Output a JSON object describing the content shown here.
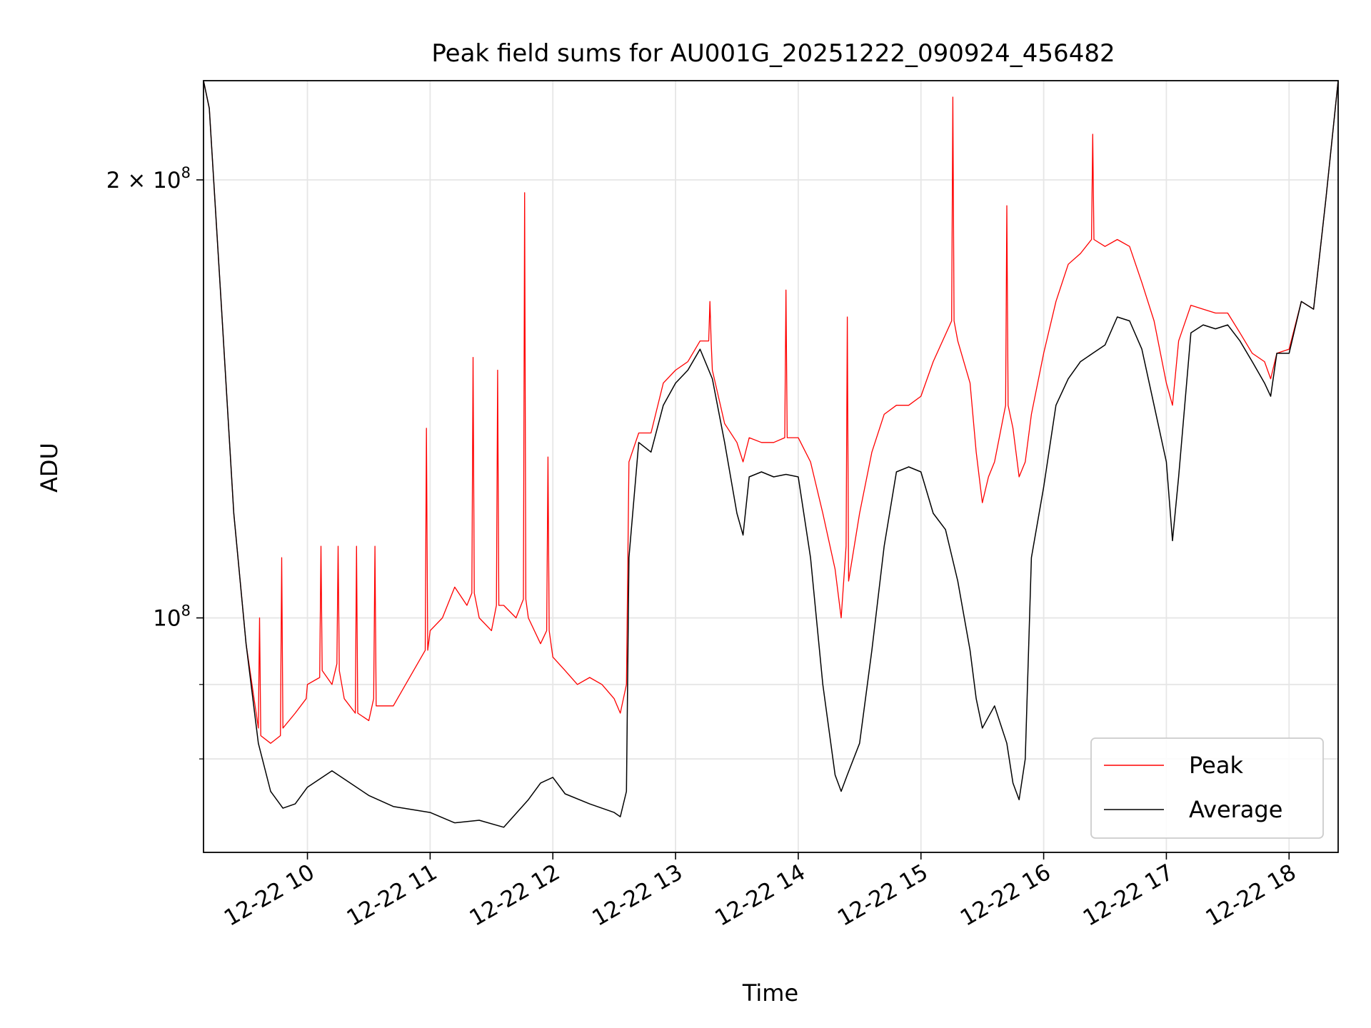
{
  "chart_data": {
    "type": "line",
    "title": "Peak field sums for AU001G_20251222_090924_456482",
    "xlabel": "Time",
    "ylabel": "ADU",
    "yscale": "log",
    "grid": true,
    "legend_position": "lower-right",
    "xlim_hours": [
      9.153,
      18.4
    ],
    "ylim": [
      69000000,
      234000000
    ],
    "x_ticks": [
      {
        "hour": 10,
        "label": "12-22 10"
      },
      {
        "hour": 11,
        "label": "12-22 11"
      },
      {
        "hour": 12,
        "label": "12-22 12"
      },
      {
        "hour": 13,
        "label": "12-22 13"
      },
      {
        "hour": 14,
        "label": "12-22 14"
      },
      {
        "hour": 15,
        "label": "12-22 15"
      },
      {
        "hour": 16,
        "label": "12-22 16"
      },
      {
        "hour": 17,
        "label": "12-22 17"
      },
      {
        "hour": 18,
        "label": "12-22 18"
      }
    ],
    "y_major_ticks": [
      {
        "value": 100000000,
        "label_base": "10",
        "label_exp": "8"
      },
      {
        "value": 200000000,
        "label_base": "2 × 10",
        "label_exp": "8"
      }
    ],
    "y_minor_ticks": [
      80000000,
      90000000
    ],
    "series": [
      {
        "name": "Average",
        "color": "#000000",
        "x": [
          9.153,
          9.2,
          9.3,
          9.4,
          9.5,
          9.6,
          9.7,
          9.8,
          9.9,
          10.0,
          10.1,
          10.2,
          10.3,
          10.5,
          10.7,
          11.0,
          11.2,
          11.4,
          11.6,
          11.8,
          11.9,
          12.0,
          12.1,
          12.3,
          12.5,
          12.55,
          12.6,
          12.62,
          12.7,
          12.8,
          12.9,
          13.0,
          13.1,
          13.2,
          13.3,
          13.4,
          13.5,
          13.55,
          13.6,
          13.7,
          13.8,
          13.9,
          14.0,
          14.1,
          14.2,
          14.3,
          14.35,
          14.4,
          14.5,
          14.6,
          14.7,
          14.8,
          14.9,
          15.0,
          15.1,
          15.2,
          15.3,
          15.4,
          15.45,
          15.5,
          15.55,
          15.6,
          15.7,
          15.75,
          15.8,
          15.85,
          15.9,
          16.0,
          16.1,
          16.2,
          16.3,
          16.4,
          16.5,
          16.6,
          16.7,
          16.8,
          16.9,
          17.0,
          17.05,
          17.1,
          17.2,
          17.3,
          17.4,
          17.5,
          17.6,
          17.7,
          17.8,
          17.85,
          17.9,
          18.0,
          18.1,
          18.2,
          18.3,
          18.4
        ],
        "values": [
          234000000,
          224000000,
          163000000,
          118000000,
          96000000,
          82000000,
          76000000,
          74000000,
          74500000,
          76500000,
          77500000,
          78500000,
          77500000,
          75500000,
          74200000,
          73500000,
          72300000,
          72600000,
          71800000,
          75000000,
          77000000,
          77700000,
          75700000,
          74500000,
          73500000,
          73000000,
          76000000,
          110000000,
          132000000,
          130000000,
          140000000,
          145000000,
          148000000,
          153000000,
          146000000,
          132000000,
          118000000,
          114000000,
          125000000,
          126000000,
          125000000,
          125500000,
          125000000,
          110000000,
          90000000,
          78000000,
          76000000,
          78000000,
          82000000,
          95000000,
          112000000,
          126000000,
          127000000,
          126000000,
          118000000,
          115000000,
          106000000,
          95000000,
          88000000,
          84000000,
          85500000,
          87000000,
          82000000,
          77000000,
          75000000,
          80000000,
          110000000,
          123000000,
          140000000,
          146000000,
          150000000,
          152000000,
          154000000,
          161000000,
          160000000,
          153000000,
          140000000,
          128000000,
          113000000,
          125000000,
          157000000,
          159000000,
          158000000,
          159000000,
          155000000,
          150000000,
          145000000,
          142000000,
          152000000,
          152000000,
          165000000,
          163000000,
          194000000,
          234000000
        ]
      },
      {
        "name": "Peak",
        "color": "#ff0000",
        "x": [
          9.153,
          9.2,
          9.3,
          9.4,
          9.5,
          9.6,
          9.61,
          9.62,
          9.7,
          9.78,
          9.79,
          9.8,
          9.9,
          9.99,
          10.0,
          10.1,
          10.11,
          10.12,
          10.2,
          10.24,
          10.25,
          10.26,
          10.3,
          10.39,
          10.4,
          10.41,
          10.5,
          10.54,
          10.55,
          10.56,
          10.7,
          10.8,
          10.96,
          10.97,
          10.98,
          11.0,
          11.1,
          11.2,
          11.3,
          11.34,
          11.35,
          11.36,
          11.4,
          11.5,
          11.54,
          11.55,
          11.56,
          11.6,
          11.7,
          11.76,
          11.77,
          11.78,
          11.8,
          11.9,
          11.95,
          11.96,
          11.97,
          12.0,
          12.1,
          12.2,
          12.3,
          12.4,
          12.5,
          12.55,
          12.6,
          12.62,
          12.7,
          12.8,
          12.9,
          13.0,
          13.1,
          13.2,
          13.27,
          13.28,
          13.29,
          13.3,
          13.4,
          13.5,
          13.55,
          13.6,
          13.7,
          13.8,
          13.89,
          13.9,
          13.91,
          14.0,
          14.1,
          14.2,
          14.3,
          14.35,
          14.39,
          14.4,
          14.41,
          14.5,
          14.6,
          14.7,
          14.8,
          14.9,
          15.0,
          15.1,
          15.25,
          15.26,
          15.27,
          15.3,
          15.4,
          15.45,
          15.5,
          15.55,
          15.6,
          15.69,
          15.7,
          15.71,
          15.75,
          15.8,
          15.85,
          15.9,
          16.0,
          16.1,
          16.2,
          16.3,
          16.39,
          16.4,
          16.41,
          16.5,
          16.6,
          16.7,
          16.8,
          16.9,
          17.0,
          17.05,
          17.1,
          17.2,
          17.3,
          17.4,
          17.5,
          17.6,
          17.7,
          17.8,
          17.85,
          17.9,
          18.0,
          18.1,
          18.2,
          18.3,
          18.4
        ],
        "values": [
          234000000,
          224000000,
          163000000,
          118000000,
          96000000,
          84000000,
          100000000,
          83000000,
          82000000,
          83000000,
          110000000,
          84000000,
          86000000,
          88000000,
          90000000,
          91000000,
          112000000,
          92000000,
          90000000,
          93000000,
          112000000,
          92000000,
          88000000,
          86000000,
          112000000,
          86000000,
          85000000,
          88000000,
          112000000,
          87000000,
          87000000,
          90000000,
          95000000,
          135000000,
          95000000,
          98000000,
          100000000,
          105000000,
          102000000,
          104000000,
          151000000,
          104000000,
          100000000,
          98000000,
          102000000,
          148000000,
          102000000,
          102000000,
          100000000,
          103000000,
          196000000,
          103000000,
          100000000,
          96000000,
          98000000,
          129000000,
          98000000,
          94000000,
          92000000,
          90000000,
          91000000,
          90000000,
          88000000,
          86000000,
          90000000,
          128000000,
          134000000,
          134000000,
          145000000,
          148000000,
          150000000,
          155000000,
          155000000,
          165000000,
          155000000,
          148000000,
          136000000,
          132000000,
          128000000,
          133000000,
          132000000,
          132000000,
          133000000,
          168000000,
          133000000,
          133000000,
          128000000,
          118000000,
          108000000,
          100000000,
          112000000,
          161000000,
          106000000,
          118000000,
          130000000,
          138000000,
          140000000,
          140000000,
          142000000,
          150000000,
          160000000,
          228000000,
          160000000,
          155000000,
          145000000,
          130000000,
          120000000,
          125000000,
          128000000,
          140000000,
          192000000,
          140000000,
          135000000,
          125000000,
          128000000,
          138000000,
          152000000,
          165000000,
          175000000,
          178000000,
          182000000,
          215000000,
          182000000,
          180000000,
          182000000,
          180000000,
          170000000,
          160000000,
          145000000,
          140000000,
          155000000,
          164000000,
          163000000,
          162000000,
          162000000,
          157000000,
          152000000,
          150000000,
          146000000,
          152000000,
          153000000,
          165000000,
          163000000,
          194000000,
          234000000
        ]
      }
    ]
  }
}
